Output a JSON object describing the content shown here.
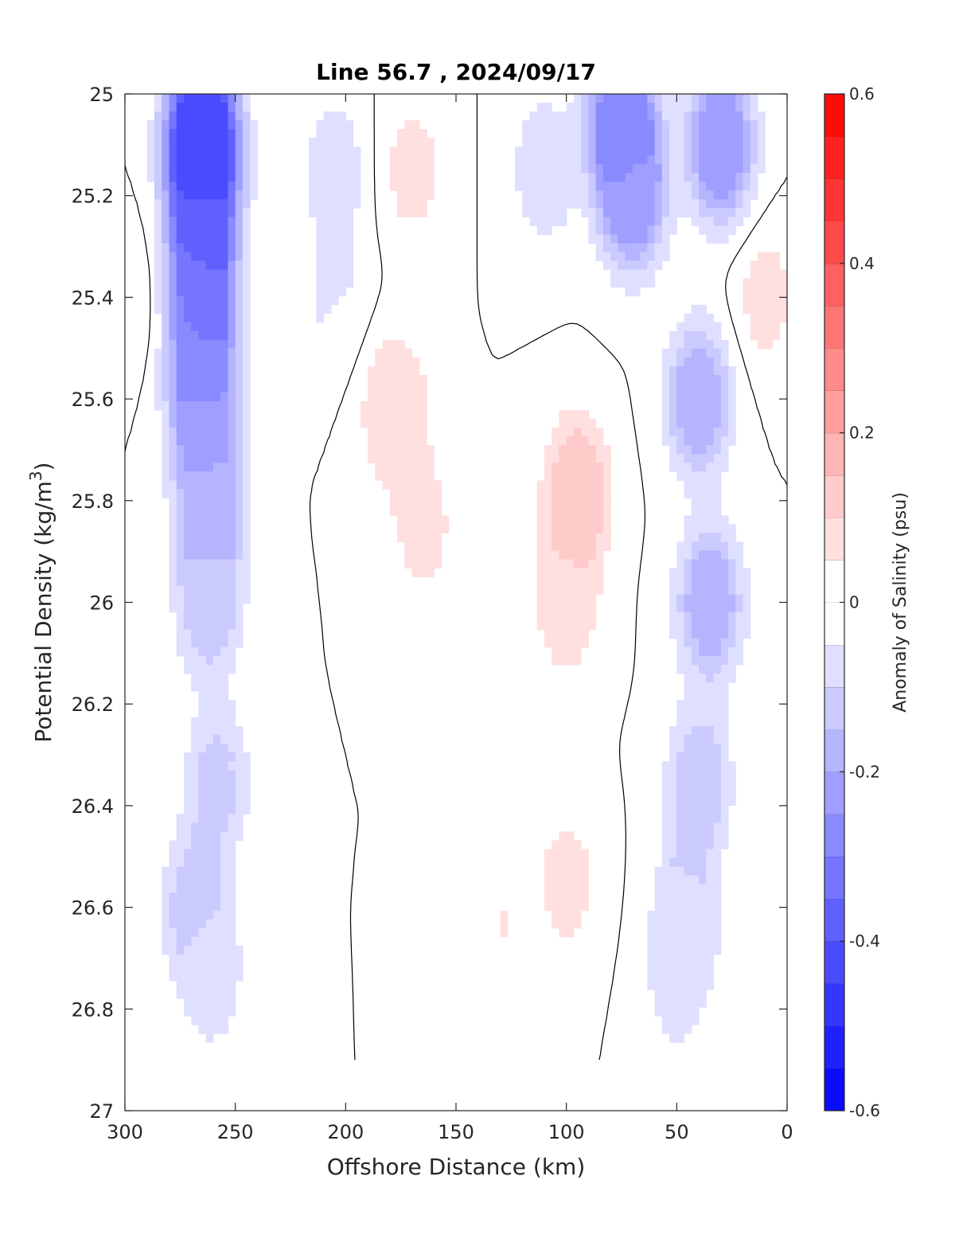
{
  "chart_data": {
    "type": "heatmap",
    "title": "Line 56.7 , 2024/09/17",
    "xlabel": "Offshore Distance (km)",
    "ylabel": "Potential Density (kg/m",
    "ylabel_sup": "3",
    "ylabel_end": ")",
    "xlim": [
      300,
      0
    ],
    "ylim": [
      25,
      27
    ],
    "x_reversed": true,
    "y_reversed": true,
    "xticks": [
      300,
      250,
      200,
      150,
      100,
      50,
      0
    ],
    "xtick_labels": [
      "300",
      "250",
      "200",
      "150",
      "100",
      "50",
      "0"
    ],
    "yticks": [
      25,
      25.2,
      25.4,
      25.6,
      25.8,
      26,
      26.2,
      26.4,
      26.6,
      26.8,
      27
    ],
    "ytick_labels": [
      "25",
      "25.2",
      "25.4",
      "25.6",
      "25.8",
      "26",
      "26.2",
      "26.4",
      "26.6",
      "26.8",
      "27"
    ],
    "colorbar": {
      "label": "Anomaly of Salinity (psu)",
      "range": [
        -0.6,
        0.6
      ],
      "levels": 24,
      "ticks": [
        -0.6,
        -0.4,
        -0.2,
        0,
        0.2,
        0.4,
        0.6
      ],
      "tick_labels": [
        "-0.6",
        "-0.4",
        "-0.2",
        "0",
        "0.2",
        "0.4",
        "0.6"
      ],
      "low_color": "#0000ff",
      "mid_color": "#ffffff",
      "high_color": "#ff0000"
    },
    "data_extent": {
      "density_max": 26.9
    },
    "anomaly_cores": [
      {
        "x": 265,
        "y": 25.05,
        "value": -0.45
      },
      {
        "x": 265,
        "y": 25.2,
        "value": -0.4
      },
      {
        "x": 265,
        "y": 25.4,
        "value": -0.33
      },
      {
        "x": 265,
        "y": 25.6,
        "value": -0.25
      },
      {
        "x": 262,
        "y": 25.8,
        "value": -0.18
      },
      {
        "x": 262,
        "y": 26.0,
        "value": -0.13
      },
      {
        "x": 258,
        "y": 26.35,
        "value": -0.1
      },
      {
        "x": 268,
        "y": 26.6,
        "value": -0.12
      },
      {
        "x": 260,
        "y": 26.75,
        "value": -0.06
      },
      {
        "x": 205,
        "y": 25.15,
        "value": -0.07
      },
      {
        "x": 205,
        "y": 25.4,
        "value": -0.05
      },
      {
        "x": 170,
        "y": 25.15,
        "value": 0.06
      },
      {
        "x": 178,
        "y": 25.62,
        "value": 0.1
      },
      {
        "x": 165,
        "y": 25.85,
        "value": 0.06
      },
      {
        "x": 95,
        "y": 25.78,
        "value": 0.14
      },
      {
        "x": 100,
        "y": 26.0,
        "value": 0.08
      },
      {
        "x": 100,
        "y": 26.55,
        "value": 0.06
      },
      {
        "x": 135,
        "y": 26.65,
        "value": 0.05
      },
      {
        "x": 75,
        "y": 25.05,
        "value": -0.3
      },
      {
        "x": 70,
        "y": 25.2,
        "value": -0.22
      },
      {
        "x": 30,
        "y": 25.1,
        "value": -0.25
      },
      {
        "x": 40,
        "y": 25.6,
        "value": -0.18
      },
      {
        "x": 35,
        "y": 26.0,
        "value": -0.18
      },
      {
        "x": 40,
        "y": 26.35,
        "value": -0.12
      },
      {
        "x": 45,
        "y": 26.6,
        "value": -0.1
      },
      {
        "x": 50,
        "y": 26.75,
        "value": -0.06
      },
      {
        "x": 110,
        "y": 25.15,
        "value": -0.08
      },
      {
        "x": 10,
        "y": 25.4,
        "value": 0.06
      },
      {
        "x": 298,
        "y": 25.4,
        "value": 0.04
      }
    ]
  }
}
